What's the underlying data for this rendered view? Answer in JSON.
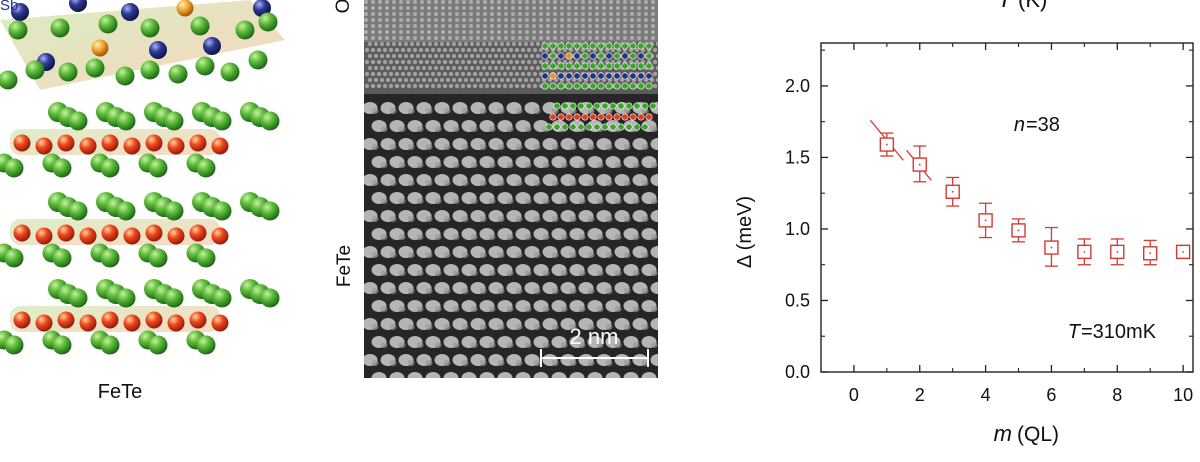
{
  "structure_panel": {
    "label": "FeTe",
    "top_label_fragment": "Sb",
    "atom_colors": {
      "te": "#3aa52b",
      "fe": "#e23c1c",
      "sb": "#26307f",
      "bi": "#e8902a",
      "bond": "#c8c23a"
    }
  },
  "stem_panel": {
    "side_label_top": "O",
    "side_label": "FeTe",
    "scale_bar_label": "2 nm"
  },
  "top_axis_fragment": {
    "symbol": "T",
    "unit": "(K)"
  },
  "chart_data": {
    "type": "scatter",
    "marker": "open-square",
    "color": "#d43a32",
    "xlabel_symbol": "m",
    "xlabel_unit": "(QL)",
    "ylabel": "Δ (meV)",
    "xlim": [
      -1,
      10.3
    ],
    "ylim": [
      0,
      2.3
    ],
    "xticks": [
      "0",
      "2",
      "4",
      "6",
      "8",
      "10"
    ],
    "yticks": [
      "0.0",
      "0.5",
      "1.0",
      "1.5",
      "2.0"
    ],
    "annotation_n": {
      "symbol": "n",
      "text": "=38"
    },
    "annotation_T": {
      "symbol": "T",
      "text": "=310mK"
    },
    "points": [
      {
        "x": 1,
        "y": 1.59,
        "err_lo": 0.08,
        "err_hi": 0.08
      },
      {
        "x": 2,
        "y": 1.45,
        "err_lo": 0.12,
        "err_hi": 0.13
      },
      {
        "x": 3,
        "y": 1.26,
        "err_lo": 0.1,
        "err_hi": 0.1
      },
      {
        "x": 4,
        "y": 1.06,
        "err_lo": 0.12,
        "err_hi": 0.12
      },
      {
        "x": 5,
        "y": 0.99,
        "err_lo": 0.08,
        "err_hi": 0.08
      },
      {
        "x": 6,
        "y": 0.87,
        "err_lo": 0.13,
        "err_hi": 0.14
      },
      {
        "x": 7,
        "y": 0.84,
        "err_lo": 0.09,
        "err_hi": 0.09
      },
      {
        "x": 8,
        "y": 0.84,
        "err_lo": 0.09,
        "err_hi": 0.09
      },
      {
        "x": 9,
        "y": 0.83,
        "err_lo": 0.08,
        "err_hi": 0.09
      },
      {
        "x": 10,
        "y": 0.84,
        "err_lo": 0.03,
        "err_hi": 0.03
      }
    ],
    "fit_segments": [
      {
        "x": [
          0.5,
          1.5
        ],
        "y": [
          1.76,
          1.48
        ]
      },
      {
        "x": [
          1.6,
          2.35
        ],
        "y": [
          1.55,
          1.34
        ]
      }
    ]
  }
}
